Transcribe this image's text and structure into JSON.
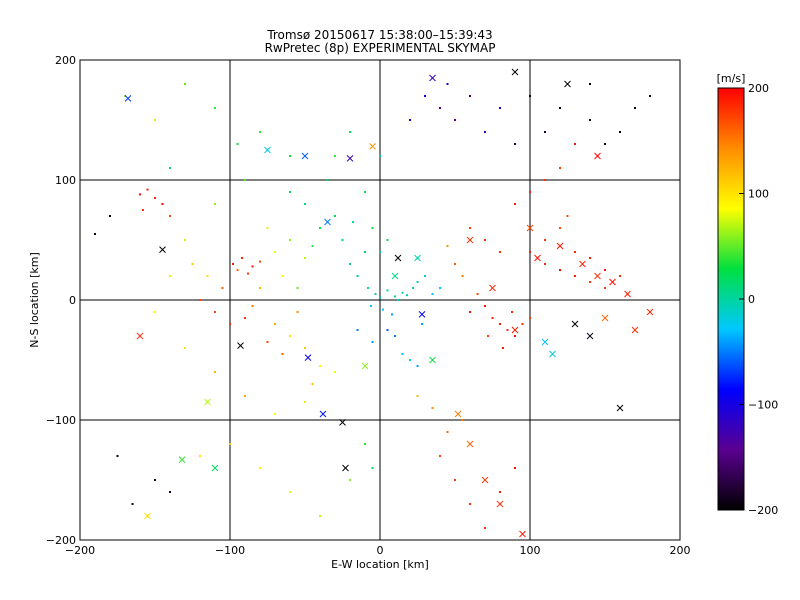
{
  "chart_data": {
    "type": "scatter",
    "title": "Tromsø 20150617 15:38:00–15:39:43",
    "subtitle": "RwPretec (8p) EXPERIMENTAL SKYMAP",
    "xlabel": "E-W location [km]",
    "ylabel": "N-S location [km]",
    "xlim": [
      -200,
      200
    ],
    "ylim": [
      -200,
      200
    ],
    "xticks": [
      -200,
      -100,
      0,
      100,
      200
    ],
    "yticks": [
      -200,
      -100,
      0,
      100,
      200
    ],
    "grid": true,
    "colorbar": {
      "label": "[m/s]",
      "min": -200,
      "max": 200,
      "ticks": [
        200,
        100,
        0,
        -100,
        -200
      ],
      "colormap": [
        "#000000",
        "#5a0090",
        "#0000ff",
        "#00c8ff",
        "#00e040",
        "#ffff00",
        "#ff8c00",
        "#ff0000"
      ]
    },
    "markers": {
      "plus": "+ (small dot)",
      "cross": "x"
    },
    "series": [
      {
        "marker": "plus",
        "points": [
          [
            -160,
            88,
            195
          ],
          [
            -155,
            92,
            190
          ],
          [
            -150,
            85,
            185
          ],
          [
            -145,
            80,
            195
          ],
          [
            -158,
            75,
            180
          ],
          [
            -140,
            70,
            175
          ],
          [
            -98,
            30,
            190
          ],
          [
            -92,
            35,
            185
          ],
          [
            -85,
            28,
            195
          ],
          [
            -80,
            32,
            170
          ],
          [
            -88,
            22,
            180
          ],
          [
            -95,
            25,
            160
          ],
          [
            -70,
            40,
            80
          ],
          [
            -60,
            50,
            60
          ],
          [
            -50,
            35,
            70
          ],
          [
            -65,
            20,
            90
          ],
          [
            -55,
            10,
            50
          ],
          [
            -45,
            45,
            40
          ],
          [
            -40,
            60,
            30
          ],
          [
            -30,
            70,
            20
          ],
          [
            -50,
            80,
            10
          ],
          [
            -60,
            90,
            20
          ],
          [
            -35,
            100,
            15
          ],
          [
            -75,
            60,
            100
          ],
          [
            -80,
            10,
            120
          ],
          [
            -85,
            -5,
            150
          ],
          [
            -90,
            -15,
            180
          ],
          [
            -70,
            -20,
            130
          ],
          [
            -60,
            -30,
            100
          ],
          [
            -50,
            -40,
            110
          ],
          [
            -40,
            -55,
            90
          ],
          [
            -30,
            -60,
            80
          ],
          [
            -45,
            -70,
            120
          ],
          [
            -55,
            -10,
            140
          ],
          [
            -65,
            -45,
            160
          ],
          [
            -75,
            -35,
            170
          ],
          [
            -100,
            -20,
            180
          ],
          [
            -110,
            -10,
            170
          ],
          [
            -120,
            0,
            175
          ],
          [
            -105,
            10,
            160
          ],
          [
            -115,
            20,
            100
          ],
          [
            -125,
            30,
            110
          ],
          [
            -20,
            30,
            0
          ],
          [
            -15,
            20,
            10
          ],
          [
            -10,
            40,
            20
          ],
          [
            -25,
            50,
            10
          ],
          [
            -5,
            60,
            30
          ],
          [
            -18,
            65,
            0
          ],
          [
            -8,
            10,
            5
          ],
          [
            -3,
            5,
            -5
          ],
          [
            0,
            2,
            -10
          ],
          [
            5,
            8,
            0
          ],
          [
            10,
            3,
            10
          ],
          [
            15,
            6,
            -5
          ],
          [
            -6,
            -5,
            -20
          ],
          [
            2,
            -8,
            -30
          ],
          [
            8,
            -12,
            -40
          ],
          [
            12,
            0,
            -10
          ],
          [
            18,
            4,
            -5
          ],
          [
            22,
            10,
            0
          ],
          [
            25,
            15,
            -10
          ],
          [
            30,
            20,
            -20
          ],
          [
            35,
            5,
            -30
          ],
          [
            40,
            10,
            -25
          ],
          [
            28,
            -20,
            -40
          ],
          [
            20,
            -50,
            -20
          ],
          [
            15,
            -45,
            -30
          ],
          [
            25,
            -55,
            -40
          ],
          [
            10,
            -30,
            -50
          ],
          [
            5,
            -25,
            -60
          ],
          [
            -5,
            -35,
            -40
          ],
          [
            -15,
            -25,
            -50
          ],
          [
            0,
            40,
            10
          ],
          [
            5,
            50,
            20
          ],
          [
            -10,
            90,
            30
          ],
          [
            0,
            120,
            10
          ],
          [
            -20,
            140,
            20
          ],
          [
            -30,
            120,
            40
          ],
          [
            -60,
            120,
            30
          ],
          [
            -80,
            140,
            40
          ],
          [
            -90,
            100,
            50
          ],
          [
            -110,
            80,
            60
          ],
          [
            -130,
            50,
            70
          ],
          [
            -140,
            20,
            80
          ],
          [
            -150,
            -10,
            90
          ],
          [
            -130,
            -40,
            100
          ],
          [
            -110,
            -60,
            120
          ],
          [
            -90,
            -80,
            130
          ],
          [
            -70,
            -95,
            90
          ],
          [
            -50,
            -85,
            100
          ],
          [
            60,
            -10,
            190
          ],
          [
            70,
            -5,
            195
          ],
          [
            75,
            -15,
            185
          ],
          [
            80,
            -20,
            190
          ],
          [
            85,
            -25,
            180
          ],
          [
            90,
            -30,
            195
          ],
          [
            65,
            5,
            170
          ],
          [
            72,
            -30,
            175
          ],
          [
            82,
            -40,
            190
          ],
          [
            88,
            -10,
            185
          ],
          [
            95,
            -20,
            180
          ],
          [
            100,
            -15,
            175
          ],
          [
            100,
            40,
            190
          ],
          [
            110,
            30,
            185
          ],
          [
            120,
            25,
            195
          ],
          [
            130,
            20,
            190
          ],
          [
            140,
            15,
            180
          ],
          [
            150,
            10,
            175
          ],
          [
            110,
            50,
            180
          ],
          [
            120,
            60,
            170
          ],
          [
            130,
            40,
            185
          ],
          [
            140,
            35,
            190
          ],
          [
            150,
            25,
            195
          ],
          [
            160,
            20,
            180
          ],
          [
            60,
            60,
            175
          ],
          [
            70,
            50,
            185
          ],
          [
            80,
            40,
            180
          ],
          [
            50,
            30,
            160
          ],
          [
            55,
            20,
            150
          ],
          [
            45,
            45,
            140
          ],
          [
            90,
            80,
            190
          ],
          [
            100,
            90,
            185
          ],
          [
            110,
            100,
            180
          ],
          [
            120,
            110,
            175
          ],
          [
            130,
            130,
            190
          ],
          [
            125,
            70,
            170
          ],
          [
            40,
            160,
            -150
          ],
          [
            50,
            150,
            -140
          ],
          [
            60,
            170,
            -160
          ],
          [
            70,
            140,
            -130
          ],
          [
            80,
            160,
            -120
          ],
          [
            45,
            180,
            -110
          ],
          [
            100,
            170,
            -195
          ],
          [
            120,
            160,
            -190
          ],
          [
            140,
            150,
            -185
          ],
          [
            150,
            130,
            -195
          ],
          [
            160,
            140,
            -200
          ],
          [
            170,
            160,
            -190
          ],
          [
            140,
            180,
            -195
          ],
          [
            180,
            170,
            -185
          ],
          [
            110,
            140,
            -180
          ],
          [
            90,
            130,
            -175
          ],
          [
            20,
            150,
            -100
          ],
          [
            30,
            170,
            -90
          ],
          [
            -180,
            70,
            -195
          ],
          [
            -190,
            55,
            -190
          ],
          [
            -175,
            -130,
            -195
          ],
          [
            -150,
            -150,
            -190
          ],
          [
            -165,
            -170,
            -185
          ],
          [
            -140,
            -160,
            -180
          ],
          [
            -120,
            -130,
            100
          ],
          [
            -100,
            -120,
            110
          ],
          [
            -80,
            -140,
            90
          ],
          [
            -60,
            -160,
            80
          ],
          [
            -40,
            -180,
            70
          ],
          [
            -20,
            -150,
            60
          ],
          [
            40,
            -130,
            170
          ],
          [
            50,
            -150,
            175
          ],
          [
            60,
            -170,
            180
          ],
          [
            70,
            -190,
            185
          ],
          [
            80,
            -160,
            190
          ],
          [
            90,
            -140,
            195
          ],
          [
            45,
            -110,
            160
          ],
          [
            55,
            -100,
            150
          ],
          [
            35,
            -90,
            140
          ],
          [
            25,
            -80,
            120
          ],
          [
            -10,
            -120,
            40
          ],
          [
            -5,
            -140,
            20
          ],
          [
            -170,
            170,
            60
          ],
          [
            -150,
            150,
            70
          ],
          [
            -130,
            180,
            50
          ],
          [
            -110,
            160,
            40
          ],
          [
            -95,
            130,
            30
          ],
          [
            -140,
            110,
            20
          ]
        ]
      },
      {
        "marker": "cross",
        "points": [
          [
            -145,
            42,
            -200
          ],
          [
            -160,
            -30,
            180
          ],
          [
            -115,
            -85,
            70
          ],
          [
            -132,
            -133,
            40
          ],
          [
            -93,
            -38,
            -200
          ],
          [
            -50,
            120,
            -60
          ],
          [
            -48,
            -48,
            -90
          ],
          [
            -38,
            -95,
            -80
          ],
          [
            -25,
            -102,
            -200
          ],
          [
            -23,
            -140,
            -200
          ],
          [
            -5,
            128,
            140
          ],
          [
            12,
            35,
            -200
          ],
          [
            28,
            -12,
            -90
          ],
          [
            35,
            -50,
            30
          ],
          [
            -10,
            -55,
            60
          ],
          [
            52,
            -95,
            150
          ],
          [
            60,
            -120,
            160
          ],
          [
            70,
            -150,
            175
          ],
          [
            80,
            -170,
            180
          ],
          [
            95,
            -195,
            190
          ],
          [
            60,
            50,
            180
          ],
          [
            75,
            10,
            185
          ],
          [
            90,
            -25,
            190
          ],
          [
            100,
            60,
            170
          ],
          [
            105,
            35,
            195
          ],
          [
            120,
            45,
            190
          ],
          [
            135,
            30,
            185
          ],
          [
            145,
            20,
            180
          ],
          [
            155,
            15,
            195
          ],
          [
            165,
            5,
            190
          ],
          [
            180,
            -10,
            185
          ],
          [
            170,
            -25,
            180
          ],
          [
            130,
            -20,
            -200
          ],
          [
            140,
            -30,
            -190
          ],
          [
            150,
            -15,
            160
          ],
          [
            110,
            -35,
            -30
          ],
          [
            115,
            -45,
            -20
          ],
          [
            160,
            -90,
            -200
          ],
          [
            125,
            180,
            -200
          ],
          [
            145,
            120,
            200
          ],
          [
            35,
            185,
            -120
          ],
          [
            90,
            190,
            -200
          ],
          [
            -20,
            118,
            -120
          ],
          [
            -75,
            125,
            -20
          ],
          [
            -168,
            168,
            -70
          ],
          [
            -110,
            -140,
            20
          ],
          [
            -155,
            -180,
            100
          ],
          [
            10,
            20,
            10
          ],
          [
            25,
            35,
            0
          ],
          [
            -35,
            65,
            -50
          ]
        ]
      }
    ]
  }
}
